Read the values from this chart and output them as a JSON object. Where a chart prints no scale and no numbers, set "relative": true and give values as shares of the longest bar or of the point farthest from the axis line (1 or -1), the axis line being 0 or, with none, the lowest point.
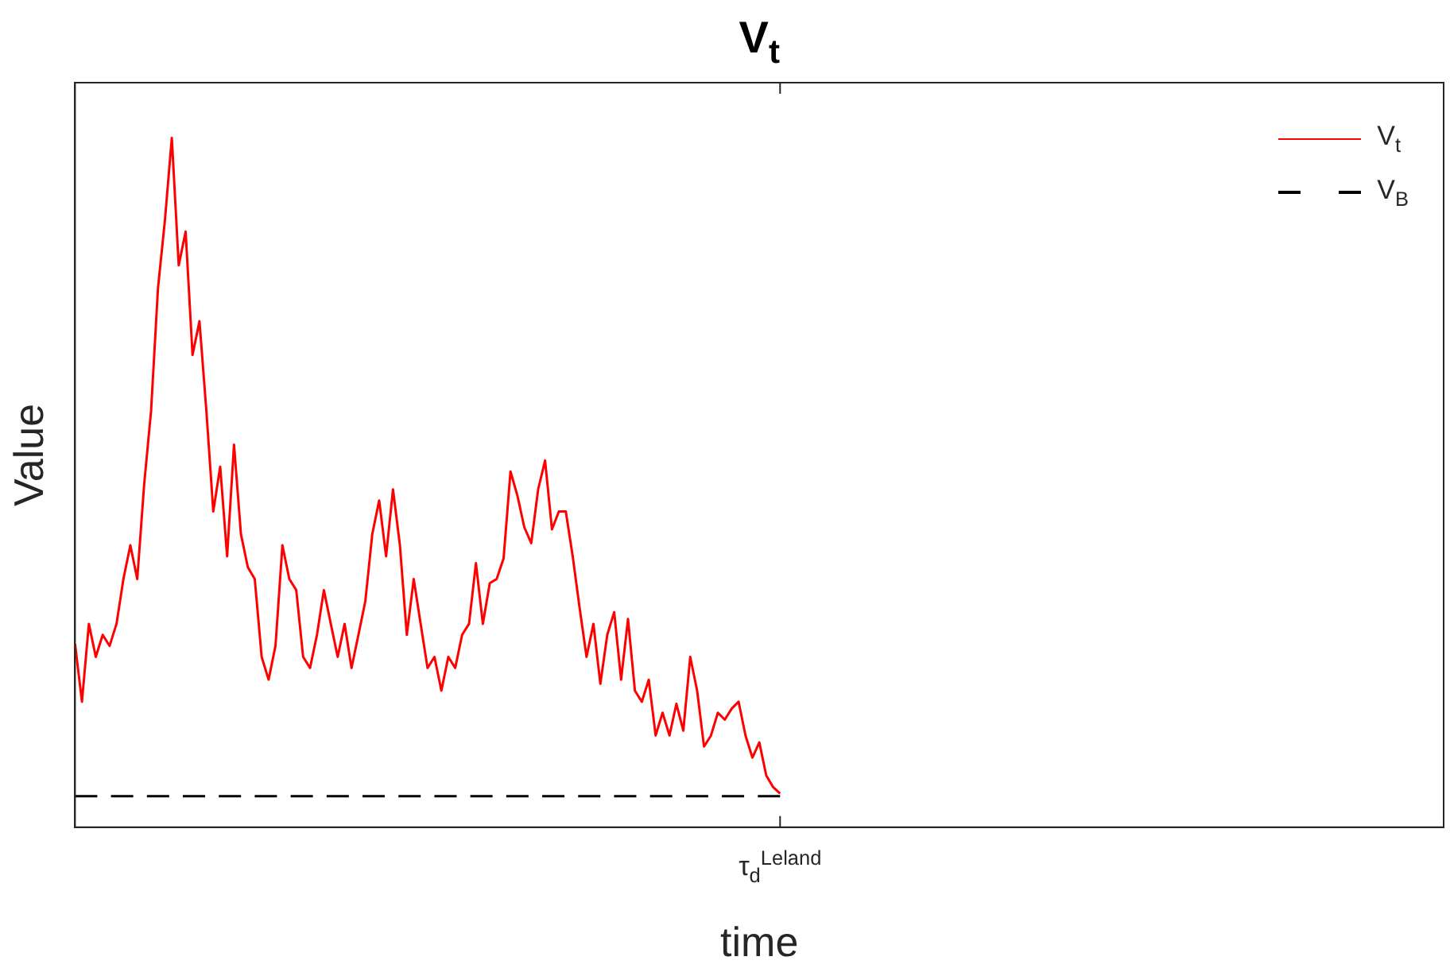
{
  "chart_data": {
    "type": "line",
    "title": "V$_{t}$",
    "xlabel": "time",
    "ylabel": "Value",
    "relative": true,
    "grid": false,
    "legend": "top right",
    "marker": "none",
    "annotations": [
      "τ$_{d}$$^{Leland}$"
    ],
    "categories": [
      null,
      null,
      null,
      null,
      null,
      null,
      null,
      null,
      null,
      null,
      null,
      null,
      null,
      null,
      null,
      null,
      null,
      null,
      null,
      null,
      null,
      null,
      null,
      null,
      null,
      null,
      null,
      null,
      null,
      null,
      null,
      null,
      null,
      null,
      null,
      null,
      null,
      null,
      null,
      null,
      null,
      null,
      null,
      null,
      null,
      null,
      null,
      null,
      null,
      null,
      null,
      null,
      null,
      null,
      null,
      null,
      null,
      null,
      null,
      null,
      null,
      null,
      null,
      null,
      null,
      null,
      null,
      null,
      null,
      null,
      null,
      null,
      null,
      null,
      null,
      null,
      null,
      null,
      null,
      null,
      null,
      null,
      null,
      null,
      null,
      null,
      null,
      null,
      null,
      null,
      null,
      null,
      null,
      null,
      null,
      null,
      null,
      null,
      null,
      null,
      null,
      null,
      null,
      null,
      null,
      null,
      null,
      null,
      null,
      null,
      null,
      null,
      null,
      null,
      null,
      null,
      null,
      null,
      null,
      null,
      null,
      null,
      null,
      null,
      null,
      null,
      null,
      null,
      null,
      null,
      null,
      null,
      null,
      null,
      null,
      null,
      null,
      null,
      null,
      null,
      null,
      null,
      null,
      null,
      null,
      null,
      null,
      null,
      null,
      null,
      null,
      null,
      null,
      null,
      null,
      null,
      null,
      null,
      null,
      null,
      null,
      null,
      null,
      null,
      null,
      null,
      null,
      null,
      null,
      null,
      null,
      null,
      null,
      null,
      null,
      null,
      null,
      null,
      null,
      null,
      null,
      null,
      null,
      null,
      null,
      null,
      null,
      null,
      null,
      null,
      null,
      null,
      null,
      null,
      null,
      null,
      null,
      null,
      null
    ],
    "series": [
      {
        "name": "V$_{t}$",
        "color": "#ff0000",
        "line_style": "solid",
        "values": [
          0.266,
          0.182,
          0.295,
          0.247,
          0.279,
          0.263,
          0.295,
          0.36,
          0.409,
          0.36,
          0.497,
          0.604,
          0.782,
          0.88,
          1,
          0.815,
          0.864,
          0.685,
          0.734,
          0.604,
          0.458,
          0.523,
          0.393,
          0.555,
          0.425,
          0.377,
          0.36,
          0.247,
          0.214,
          0.263,
          0.409,
          0.36,
          0.344,
          0.247,
          0.231,
          0.279,
          0.344,
          0.295,
          0.247,
          0.295,
          0.231,
          0.279,
          0.328,
          0.425,
          0.474,
          0.393,
          0.49,
          0.409,
          0.279,
          0.36,
          0.295,
          0.231,
          0.247,
          0.198,
          0.247,
          0.231,
          0.279,
          0.295,
          0.383,
          0.295,
          0.354,
          0.36,
          0.39,
          0.516,
          0.481,
          0.435,
          0.412,
          0.49,
          0.532,
          0.432,
          0.458,
          0.458,
          0.393,
          0.318,
          0.247,
          0.295,
          0.208,
          0.279,
          0.312,
          0.214,
          0.302,
          0.198,
          0.182,
          0.214,
          0.133,
          0.166,
          0.133,
          0.179,
          0.14,
          0.247,
          0.198,
          0.117,
          0.133,
          0.166,
          0.156,
          0.172,
          0.182,
          0.133,
          0.101,
          0.123,
          0.075,
          0.058,
          0.049,
          null,
          null,
          null,
          null,
          null,
          null,
          null,
          null,
          null,
          null,
          null,
          null,
          null,
          null,
          null,
          null,
          null,
          null,
          null,
          null,
          null,
          null,
          null,
          null,
          null,
          null,
          null,
          null,
          null,
          null,
          null,
          null,
          null,
          null,
          null,
          null,
          null,
          null,
          null,
          null,
          null,
          null,
          null,
          null,
          null,
          null,
          null,
          null,
          null,
          null,
          null,
          null,
          null,
          null,
          null,
          null,
          null,
          null,
          null,
          null,
          null,
          null,
          null,
          null,
          null,
          null,
          null,
          null,
          null,
          null,
          null,
          null,
          null,
          null,
          null,
          null,
          null,
          null,
          null,
          null,
          null,
          null,
          null,
          null,
          null,
          null,
          null,
          null,
          null,
          null,
          null,
          null,
          null,
          null,
          null,
          null
        ]
      },
      {
        "name": "V$_{B}$",
        "color": "#000000",
        "line_style": "dashed",
        "values": [
          0.045,
          0.045,
          0.045,
          0.045,
          0.045,
          0.045,
          0.045,
          0.045,
          0.045,
          0.045,
          0.045,
          0.045,
          0.045,
          0.045,
          0.045,
          0.045,
          0.045,
          0.045,
          0.045,
          0.045,
          0.045,
          0.045,
          0.045,
          0.045,
          0.045,
          0.045,
          0.045,
          0.045,
          0.045,
          0.045,
          0.045,
          0.045,
          0.045,
          0.045,
          0.045,
          0.045,
          0.045,
          0.045,
          0.045,
          0.045,
          0.045,
          0.045,
          0.045,
          0.045,
          0.045,
          0.045,
          0.045,
          0.045,
          0.045,
          0.045,
          0.045,
          0.045,
          0.045,
          0.045,
          0.045,
          0.045,
          0.045,
          0.045,
          0.045,
          0.045,
          0.045,
          0.045,
          0.045,
          0.045,
          0.045,
          0.045,
          0.045,
          0.045,
          0.045,
          0.045,
          0.045,
          0.045,
          0.045,
          0.045,
          0.045,
          0.045,
          0.045,
          0.045,
          0.045,
          0.045,
          0.045,
          0.045,
          0.045,
          0.045,
          0.045,
          0.045,
          0.045,
          0.045,
          0.045,
          0.045,
          0.045,
          0.045,
          0.045,
          0.045,
          0.045,
          0.045,
          0.045,
          0.045,
          0.045,
          0.045,
          0.045,
          0.045,
          0.045,
          null,
          null,
          null,
          null,
          null,
          null,
          null,
          null,
          null,
          null,
          null,
          null,
          null,
          null,
          null,
          null,
          null,
          null,
          null,
          null,
          null,
          null,
          null,
          null,
          null,
          null,
          null,
          null,
          null,
          null,
          null,
          null,
          null,
          null,
          null,
          null,
          null,
          null,
          null,
          null,
          null,
          null,
          null,
          null,
          null,
          null,
          null,
          null,
          null,
          null,
          null,
          null,
          null,
          null,
          null,
          null,
          null,
          null,
          null,
          null,
          null,
          null,
          null,
          null,
          null,
          null,
          null,
          null,
          null,
          null,
          null,
          null,
          null,
          null,
          null,
          null,
          null,
          null,
          null,
          null,
          null,
          null,
          null,
          null,
          null,
          null,
          null,
          null,
          null,
          null,
          null,
          null,
          null,
          null,
          null,
          null
        ]
      }
    ]
  }
}
